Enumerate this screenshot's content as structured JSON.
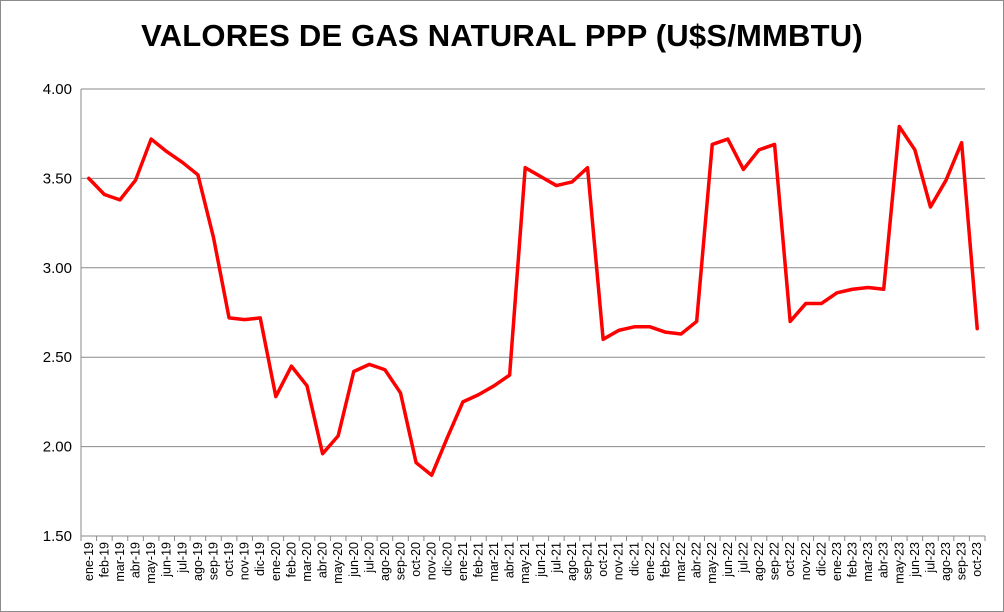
{
  "chart_data": {
    "type": "line",
    "title": "VALORES DE GAS NATURAL PPP (U$S/MMBTU)",
    "xlabel": "",
    "ylabel": "",
    "ylim": [
      1.5,
      4.0
    ],
    "yticks": [
      "1.50",
      "2.00",
      "2.50",
      "3.00",
      "3.50",
      "4.00"
    ],
    "ytick_values": [
      1.5,
      2.0,
      2.5,
      3.0,
      3.5,
      4.0
    ],
    "grid": "horizontal",
    "legend": "none",
    "line_color": "#ff0000",
    "categories": [
      "ene-19",
      "feb-19",
      "mar-19",
      "abr-19",
      "may-19",
      "jun-19",
      "jul-19",
      "ago-19",
      "sep-19",
      "oct-19",
      "nov-19",
      "dic-19",
      "ene-20",
      "feb-20",
      "mar-20",
      "abr-20",
      "may-20",
      "jun-20",
      "jul-20",
      "ago-20",
      "sep-20",
      "oct-20",
      "nov-20",
      "dic-20",
      "ene-21",
      "feb-21",
      "mar-21",
      "abr-21",
      "may-21",
      "jun-21",
      "jul-21",
      "ago-21",
      "sep-21",
      "oct-21",
      "nov-21",
      "dic-21",
      "ene-22",
      "feb-22",
      "mar-22",
      "abr-22",
      "may-22",
      "jun-22",
      "jul-22",
      "ago-22",
      "sep-22",
      "oct-22",
      "nov-22",
      "dic-22",
      "ene-23",
      "feb-23",
      "mar-23",
      "abr-23",
      "may-23",
      "jun-23",
      "jul-23",
      "ago-23",
      "sep-23",
      "oct-23"
    ],
    "series": [
      {
        "values": [
          3.5,
          3.41,
          3.38,
          3.49,
          3.72,
          3.65,
          3.59,
          3.52,
          3.17,
          2.72,
          2.71,
          2.72,
          2.28,
          2.45,
          2.34,
          1.96,
          2.06,
          2.42,
          2.46,
          2.43,
          2.3,
          1.91,
          1.84,
          2.05,
          2.25,
          2.29,
          2.34,
          2.4,
          3.56,
          3.51,
          3.46,
          3.48,
          3.56,
          2.6,
          2.65,
          2.67,
          2.67,
          2.64,
          2.63,
          2.7,
          3.69,
          3.72,
          3.55,
          3.66,
          3.69,
          2.7,
          2.8,
          2.8,
          2.86,
          2.88,
          2.89,
          2.88,
          3.79,
          3.66,
          3.34,
          3.49,
          3.7,
          2.66
        ]
      }
    ]
  }
}
